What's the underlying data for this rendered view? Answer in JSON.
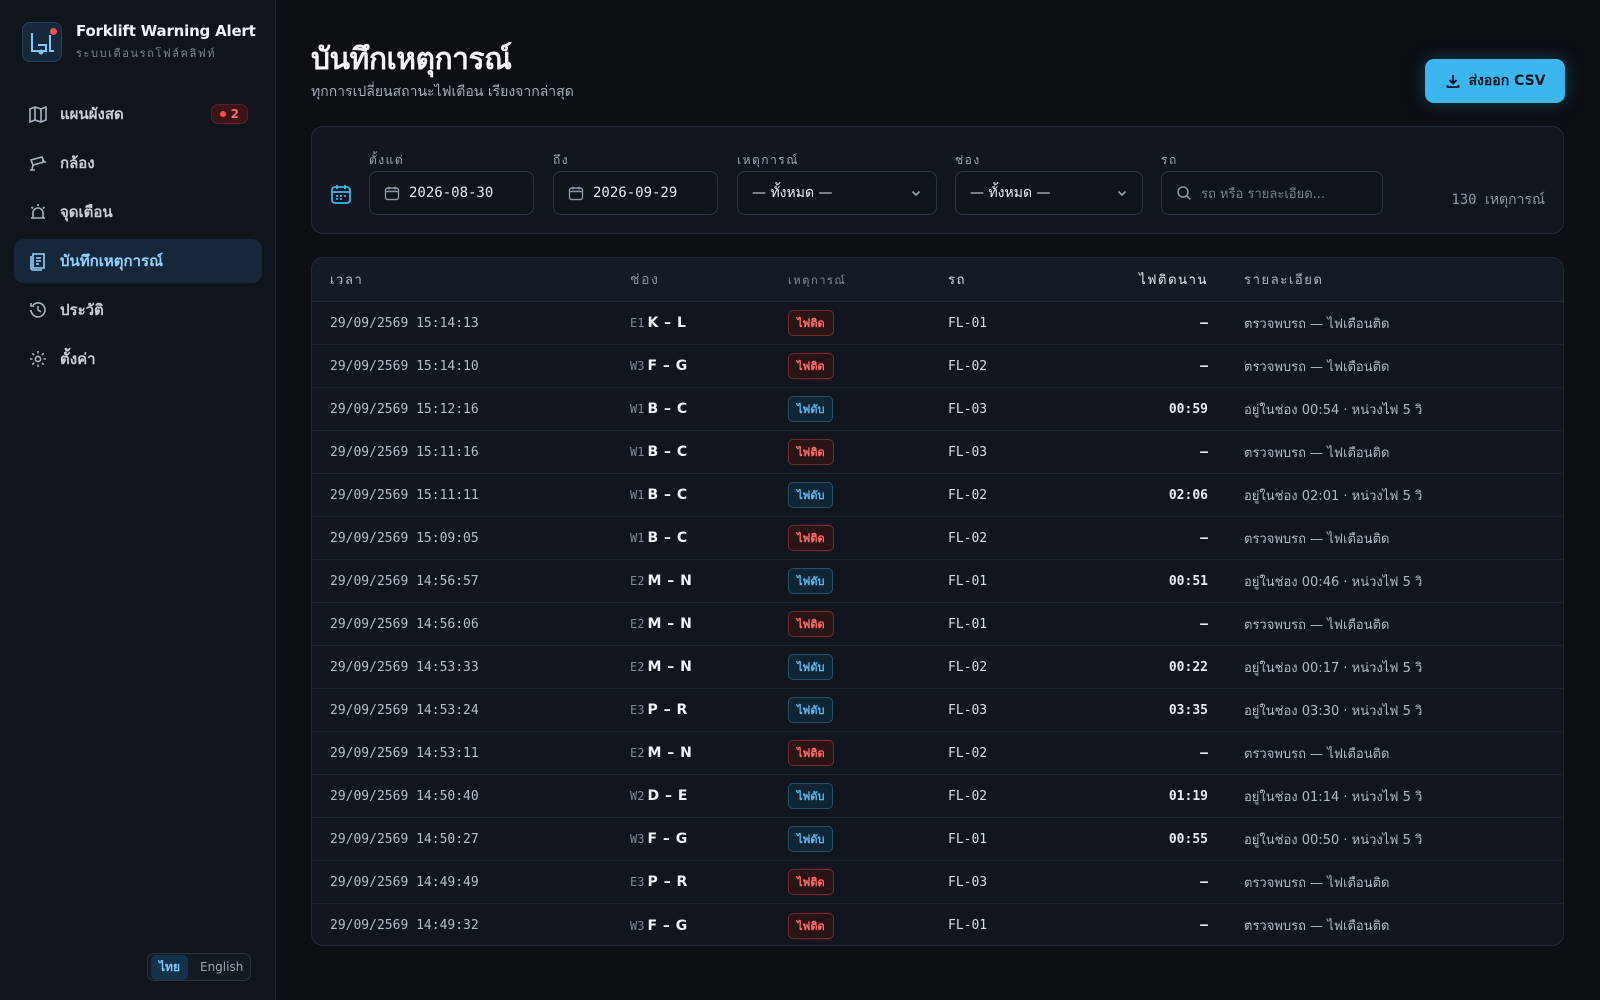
{
  "brand": {
    "title": "Forklift Warning Alert",
    "subtitle": "ระบบเตือนรถโฟล์คลิฟท์"
  },
  "nav": [
    {
      "label": "แผนผังสด",
      "icon": "map-icon",
      "badge": "2"
    },
    {
      "label": "กล้อง",
      "icon": "camera-icon"
    },
    {
      "label": "จุดเตือน",
      "icon": "alarm-icon"
    },
    {
      "label": "บันทึกเหตุการณ์",
      "icon": "log-icon",
      "active": true
    },
    {
      "label": "ประวัติ",
      "icon": "history-icon"
    },
    {
      "label": "ตั้งค่า",
      "icon": "gear-icon"
    }
  ],
  "lang": {
    "thai": "ไทย",
    "english": "English"
  },
  "page": {
    "title": "บันทึกเหตุการณ์",
    "subtitle": "ทุกการเปลี่ยนสถานะไฟเตือน เรียงจากล่าสุด",
    "export_label": "ส่งออก CSV"
  },
  "filters": {
    "from_label": "ตั้งแต่",
    "from_value": "2026-08-30",
    "to_label": "ถึง",
    "to_value": "2026-09-29",
    "event_label": "เหตุการณ์",
    "event_value": "— ทั้งหมด —",
    "lane_label": "ช่อง",
    "lane_value": "— ทั้งหมด —",
    "car_label": "รถ",
    "car_placeholder": "รถ หรือ รายละเอียด...",
    "count": "130 เหตุการณ์"
  },
  "table": {
    "headers": {
      "time": "เวลา",
      "lane": "ช่อง",
      "event": "เหตุการณ์",
      "car": "รถ",
      "duration": "ไฟติดนาน",
      "detail": "รายละเอียด"
    },
    "rows": [
      {
        "time": "29/09/2569 15:14:13",
        "lane_code": "E1",
        "lane_route": "K – L",
        "event": "ไฟติด",
        "event_type": "on",
        "car": "FL-01",
        "duration": "—",
        "detail": "ตรวจพบรถ — ไฟเตือนติด"
      },
      {
        "time": "29/09/2569 15:14:10",
        "lane_code": "W3",
        "lane_route": "F – G",
        "event": "ไฟติด",
        "event_type": "on",
        "car": "FL-02",
        "duration": "—",
        "detail": "ตรวจพบรถ — ไฟเตือนติด"
      },
      {
        "time": "29/09/2569 15:12:16",
        "lane_code": "W1",
        "lane_route": "B – C",
        "event": "ไฟดับ",
        "event_type": "off",
        "car": "FL-03",
        "duration": "00:59",
        "detail": "อยู่ในช่อง 00:54 · หน่วงไฟ 5 วิ"
      },
      {
        "time": "29/09/2569 15:11:16",
        "lane_code": "W1",
        "lane_route": "B – C",
        "event": "ไฟติด",
        "event_type": "on",
        "car": "FL-03",
        "duration": "—",
        "detail": "ตรวจพบรถ — ไฟเตือนติด"
      },
      {
        "time": "29/09/2569 15:11:11",
        "lane_code": "W1",
        "lane_route": "B – C",
        "event": "ไฟดับ",
        "event_type": "off",
        "car": "FL-02",
        "duration": "02:06",
        "detail": "อยู่ในช่อง 02:01 · หน่วงไฟ 5 วิ"
      },
      {
        "time": "29/09/2569 15:09:05",
        "lane_code": "W1",
        "lane_route": "B – C",
        "event": "ไฟติด",
        "event_type": "on",
        "car": "FL-02",
        "duration": "—",
        "detail": "ตรวจพบรถ — ไฟเตือนติด"
      },
      {
        "time": "29/09/2569 14:56:57",
        "lane_code": "E2",
        "lane_route": "M – N",
        "event": "ไฟดับ",
        "event_type": "off",
        "car": "FL-01",
        "duration": "00:51",
        "detail": "อยู่ในช่อง 00:46 · หน่วงไฟ 5 วิ"
      },
      {
        "time": "29/09/2569 14:56:06",
        "lane_code": "E2",
        "lane_route": "M – N",
        "event": "ไฟติด",
        "event_type": "on",
        "car": "FL-01",
        "duration": "—",
        "detail": "ตรวจพบรถ — ไฟเตือนติด"
      },
      {
        "time": "29/09/2569 14:53:33",
        "lane_code": "E2",
        "lane_route": "M – N",
        "event": "ไฟดับ",
        "event_type": "off",
        "car": "FL-02",
        "duration": "00:22",
        "detail": "อยู่ในช่อง 00:17 · หน่วงไฟ 5 วิ"
      },
      {
        "time": "29/09/2569 14:53:24",
        "lane_code": "E3",
        "lane_route": "P – R",
        "event": "ไฟดับ",
        "event_type": "off",
        "car": "FL-03",
        "duration": "03:35",
        "detail": "อยู่ในช่อง 03:30 · หน่วงไฟ 5 วิ"
      },
      {
        "time": "29/09/2569 14:53:11",
        "lane_code": "E2",
        "lane_route": "M – N",
        "event": "ไฟติด",
        "event_type": "on",
        "car": "FL-02",
        "duration": "—",
        "detail": "ตรวจพบรถ — ไฟเตือนติด"
      },
      {
        "time": "29/09/2569 14:50:40",
        "lane_code": "W2",
        "lane_route": "D – E",
        "event": "ไฟดับ",
        "event_type": "off",
        "car": "FL-02",
        "duration": "01:19",
        "detail": "อยู่ในช่อง 01:14 · หน่วงไฟ 5 วิ"
      },
      {
        "time": "29/09/2569 14:50:27",
        "lane_code": "W3",
        "lane_route": "F – G",
        "event": "ไฟดับ",
        "event_type": "off",
        "car": "FL-01",
        "duration": "00:55",
        "detail": "อยู่ในช่อง 00:50 · หน่วงไฟ 5 วิ"
      },
      {
        "time": "29/09/2569 14:49:49",
        "lane_code": "E3",
        "lane_route": "P – R",
        "event": "ไฟติด",
        "event_type": "on",
        "car": "FL-03",
        "duration": "—",
        "detail": "ตรวจพบรถ — ไฟเตือนติด"
      },
      {
        "time": "29/09/2569 14:49:32",
        "lane_code": "W3",
        "lane_route": "F – G",
        "event": "ไฟติด",
        "event_type": "on",
        "car": "FL-01",
        "duration": "—",
        "detail": "ตรวจพบรถ — ไฟเตือนติด"
      }
    ]
  },
  "colors": {
    "accent": "#3bb6ef",
    "light_on": "#ff6b63",
    "light_off": "#56b8f0",
    "background": "#0c0f14"
  }
}
